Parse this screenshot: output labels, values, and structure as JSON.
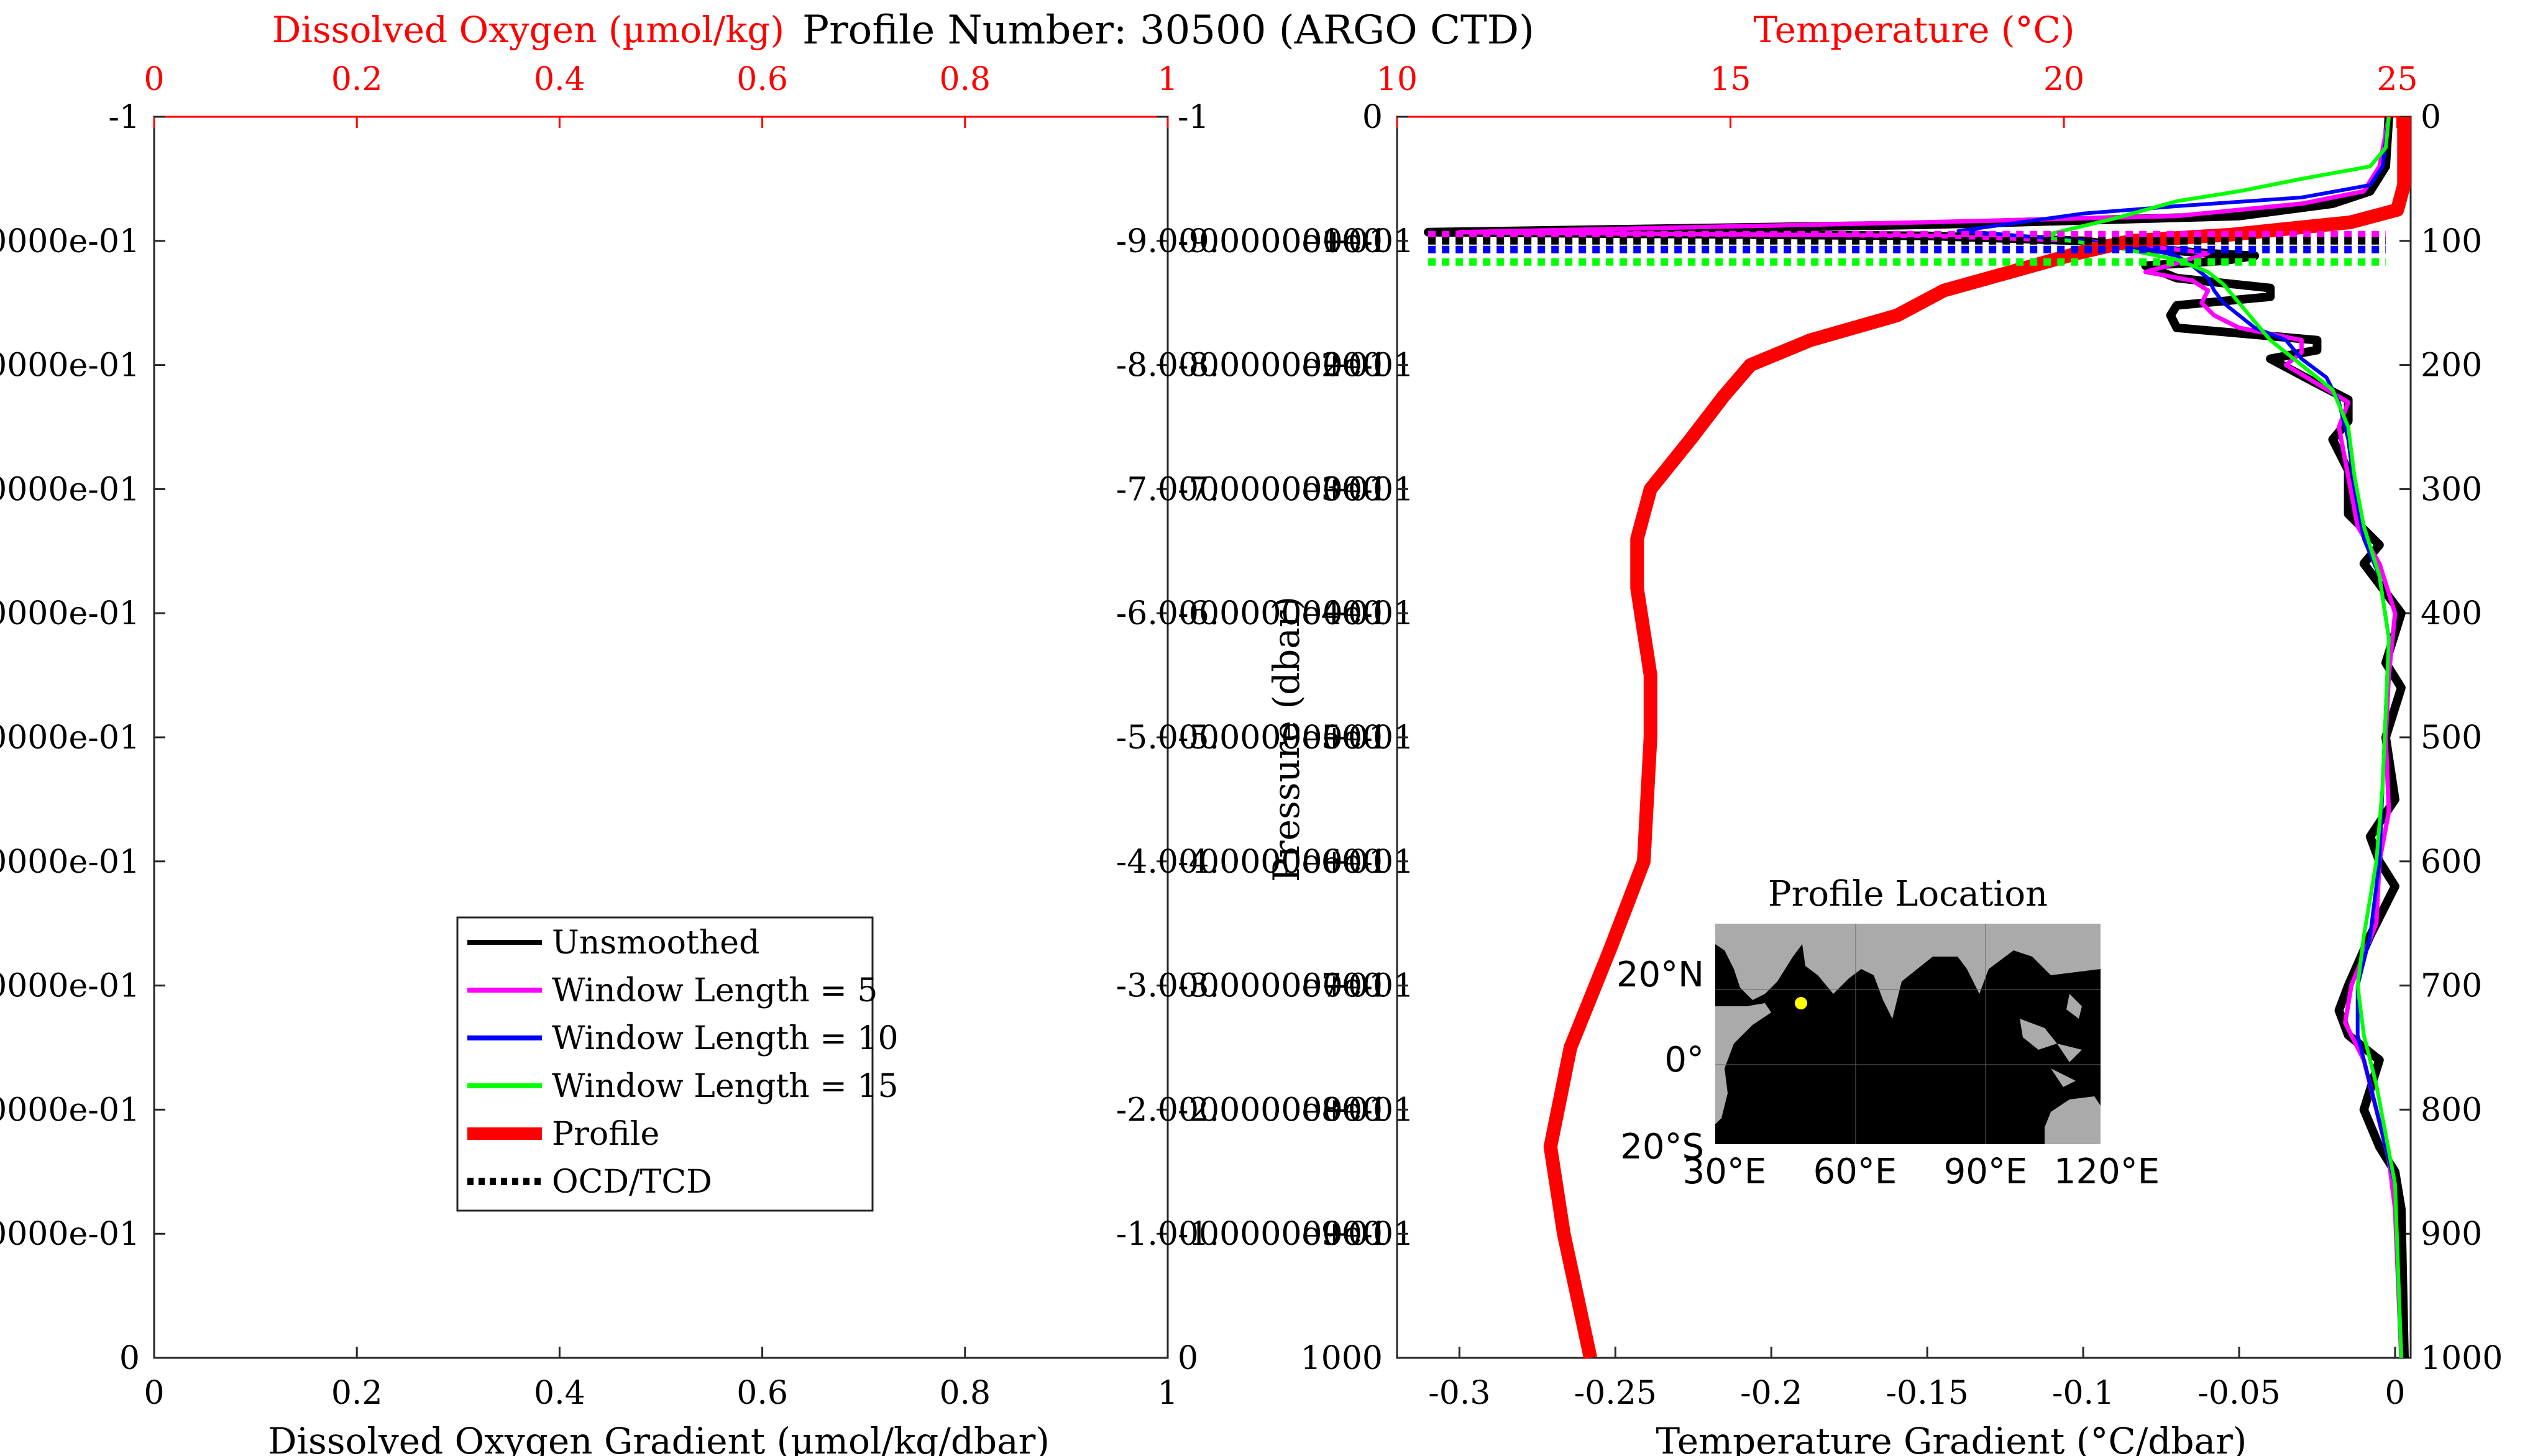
{
  "figure": {
    "title": "Profile Number: 30500 (ARGO CTD)"
  },
  "chart_data": [
    {
      "id": "oxygen-panel",
      "type": "line",
      "top_axis": {
        "label": "Dissolved Oxygen (µmol/kg)",
        "range": [
          0,
          1
        ],
        "ticks": [
          "0",
          "0.2",
          "0.4",
          "0.6",
          "0.8",
          "1"
        ],
        "color": "#ff0000"
      },
      "xlabel": "Dissolved Oxygen Gradient (µmol/kg/dbar)",
      "xlim": [
        0,
        1
      ],
      "x_ticks": [
        "0",
        "0.2",
        "0.4",
        "0.6",
        "0.8",
        "1"
      ],
      "left_y_ticks": [
        "-1",
        "0000e-01",
        "0000e-01",
        "0000e-01",
        "0000e-01",
        "0000e-01",
        "0000e-01",
        "0000e-01",
        "0000e-01",
        "0000e-01",
        "0"
      ],
      "right_y_ticks": [
        "-1",
        "-9.000000e-01",
        "-8.000000e-01",
        "-7.000000e-01",
        "-6.000000e-01",
        "-5.000000e-01",
        "-4.000000e-01",
        "-3.000000e-01",
        "-2.000000e-01",
        "-1.000000e-01",
        "0"
      ],
      "legend": {
        "placement": "lower-center",
        "entries": [
          {
            "label": "Unsmoothed",
            "color": "#000000",
            "style": "solid"
          },
          {
            "label": "Window Length = 5",
            "color": "#ff00ff",
            "style": "solid"
          },
          {
            "label": "Window Length = 10",
            "color": "#0000ff",
            "style": "solid"
          },
          {
            "label": "Window Length = 15",
            "color": "#00ff00",
            "style": "solid"
          },
          {
            "label": "Profile",
            "color": "#ff0000",
            "style": "thick"
          },
          {
            "label": "OCD/TCD",
            "color": "#000000",
            "style": "dotted"
          }
        ]
      }
    },
    {
      "id": "temperature-panel",
      "type": "line",
      "top_axis": {
        "label": "Temperature (°C)",
        "range": [
          10,
          25.2
        ],
        "ticks": [
          10,
          15,
          20,
          25
        ],
        "color": "#ff0000"
      },
      "xlabel": "Temperature Gradient (°C/dbar)",
      "xlim": [
        -0.32,
        0.005
      ],
      "x_ticks": [
        -0.3,
        -0.25,
        -0.2,
        -0.15,
        -0.1,
        -0.05,
        0
      ],
      "ylabel": "Pressure (dbar)",
      "ylim": [
        0,
        1000
      ],
      "y_reversed": true,
      "y_ticks": [
        0,
        100,
        200,
        300,
        400,
        500,
        600,
        700,
        800,
        900,
        1000
      ],
      "overlapping_left_labels": [
        "-1.0000000e+01",
        "-2.0000000e+01",
        "-3.0000000e+01",
        "-4.0000000e+01",
        "-5.0000000e+01",
        "-6.0000000e+01",
        "-7.0000000e+01",
        "-8.0000000e+01",
        "-9.0000000e+01"
      ],
      "series": [
        {
          "name": "Profile",
          "axis": "temperature",
          "color": "#ff0000",
          "points": [
            [
              25.1,
              0
            ],
            [
              25.1,
              20
            ],
            [
              25.1,
              55
            ],
            [
              25.0,
              75
            ],
            [
              24.3,
              85
            ],
            [
              22.5,
              95
            ],
            [
              21.0,
              100
            ],
            [
              20.2,
              110
            ],
            [
              19.2,
              125
            ],
            [
              18.2,
              140
            ],
            [
              17.5,
              160
            ],
            [
              16.2,
              180
            ],
            [
              15.3,
              200
            ],
            [
              14.9,
              225
            ],
            [
              14.4,
              260
            ],
            [
              13.8,
              300
            ],
            [
              13.6,
              340
            ],
            [
              13.6,
              380
            ],
            [
              13.8,
              450
            ],
            [
              13.8,
              500
            ],
            [
              13.7,
              600
            ],
            [
              13.2,
              670
            ],
            [
              12.6,
              750
            ],
            [
              12.3,
              830
            ],
            [
              12.5,
              900
            ],
            [
              12.9,
              1000
            ]
          ]
        },
        {
          "name": "Unsmoothed",
          "axis": "gradient",
          "color": "#000000",
          "points": [
            [
              -0.002,
              0
            ],
            [
              -0.003,
              40
            ],
            [
              -0.008,
              60
            ],
            [
              -0.02,
              70
            ],
            [
              -0.05,
              80
            ],
            [
              -0.15,
              87
            ],
            [
              -0.31,
              93
            ],
            [
              -0.15,
              96
            ],
            [
              -0.1,
              100
            ],
            [
              -0.08,
              106
            ],
            [
              -0.06,
              110
            ],
            [
              -0.045,
              112
            ],
            [
              -0.055,
              116
            ],
            [
              -0.08,
              120
            ],
            [
              -0.07,
              130
            ],
            [
              -0.04,
              138
            ],
            [
              -0.04,
              145
            ],
            [
              -0.07,
              152
            ],
            [
              -0.072,
              160
            ],
            [
              -0.07,
              170
            ],
            [
              -0.025,
              180
            ],
            [
              -0.025,
              188
            ],
            [
              -0.04,
              195
            ],
            [
              -0.025,
              215
            ],
            [
              -0.015,
              228
            ],
            [
              -0.015,
              245
            ],
            [
              -0.02,
              260
            ],
            [
              -0.015,
              285
            ],
            [
              -0.015,
              320
            ],
            [
              -0.005,
              345
            ],
            [
              -0.01,
              360
            ],
            [
              0.002,
              400
            ],
            [
              -0.003,
              440
            ],
            [
              0.002,
              460
            ],
            [
              -0.003,
              500
            ],
            [
              0.0,
              550
            ],
            [
              -0.008,
              580
            ],
            [
              -0.005,
              600
            ],
            [
              0.0,
              620
            ],
            [
              -0.008,
              660
            ],
            [
              -0.015,
              700
            ],
            [
              -0.018,
              720
            ],
            [
              -0.015,
              740
            ],
            [
              -0.005,
              760
            ],
            [
              -0.01,
              800
            ],
            [
              -0.005,
              830
            ],
            [
              0.0,
              850
            ],
            [
              0.002,
              880
            ],
            [
              0.003,
              1000
            ]
          ]
        },
        {
          "name": "Window Length = 5",
          "axis": "gradient",
          "color": "#ff00ff",
          "points": [
            [
              -0.002,
              0
            ],
            [
              -0.005,
              40
            ],
            [
              -0.01,
              60
            ],
            [
              -0.03,
              70
            ],
            [
              -0.07,
              80
            ],
            [
              -0.15,
              85
            ],
            [
              -0.3,
              93
            ],
            [
              -0.15,
              96
            ],
            [
              -0.1,
              100
            ],
            [
              -0.08,
              104
            ],
            [
              -0.06,
              110
            ],
            [
              -0.07,
              118
            ],
            [
              -0.08,
              125
            ],
            [
              -0.065,
              132
            ],
            [
              -0.06,
              140
            ],
            [
              -0.062,
              150
            ],
            [
              -0.058,
              160
            ],
            [
              -0.05,
              170
            ],
            [
              -0.03,
              180
            ],
            [
              -0.03,
              190
            ],
            [
              -0.035,
              200
            ],
            [
              -0.025,
              215
            ],
            [
              -0.015,
              230
            ],
            [
              -0.018,
              250
            ],
            [
              -0.015,
              290
            ],
            [
              -0.012,
              330
            ],
            [
              -0.005,
              360
            ],
            [
              0.0,
              400
            ],
            [
              -0.002,
              450
            ],
            [
              -0.003,
              500
            ],
            [
              -0.002,
              560
            ],
            [
              -0.005,
              600
            ],
            [
              -0.006,
              650
            ],
            [
              -0.014,
              700
            ],
            [
              -0.016,
              730
            ],
            [
              -0.01,
              760
            ],
            [
              -0.006,
              800
            ],
            [
              -0.002,
              840
            ],
            [
              0.0,
              880
            ],
            [
              0.002,
              1000
            ]
          ]
        },
        {
          "name": "Window Length = 10",
          "axis": "gradient",
          "color": "#0000ff",
          "points": [
            [
              -0.002,
              0
            ],
            [
              -0.004,
              40
            ],
            [
              -0.008,
              55
            ],
            [
              -0.03,
              65
            ],
            [
              -0.07,
              72
            ],
            [
              -0.1,
              78
            ],
            [
              -0.12,
              85
            ],
            [
              -0.14,
              92
            ],
            [
              -0.12,
              96
            ],
            [
              -0.1,
              100
            ],
            [
              -0.08,
              106
            ],
            [
              -0.07,
              112
            ],
            [
              -0.065,
              120
            ],
            [
              -0.06,
              130
            ],
            [
              -0.058,
              140
            ],
            [
              -0.055,
              150
            ],
            [
              -0.05,
              160
            ],
            [
              -0.045,
              170
            ],
            [
              -0.035,
              180
            ],
            [
              -0.03,
              195
            ],
            [
              -0.022,
              210
            ],
            [
              -0.018,
              230
            ],
            [
              -0.015,
              260
            ],
            [
              -0.013,
              300
            ],
            [
              -0.01,
              340
            ],
            [
              -0.005,
              370
            ],
            [
              -0.002,
              420
            ],
            [
              -0.003,
              480
            ],
            [
              -0.004,
              540
            ],
            [
              -0.005,
              600
            ],
            [
              -0.008,
              660
            ],
            [
              -0.012,
              700
            ],
            [
              -0.012,
              740
            ],
            [
              -0.008,
              780
            ],
            [
              -0.004,
              820
            ],
            [
              0.0,
              860
            ],
            [
              0.002,
              1000
            ]
          ]
        },
        {
          "name": "Window Length = 15",
          "axis": "gradient",
          "color": "#00ff00",
          "points": [
            [
              -0.002,
              0
            ],
            [
              -0.003,
              25
            ],
            [
              -0.008,
              40
            ],
            [
              -0.03,
              50
            ],
            [
              -0.05,
              60
            ],
            [
              -0.07,
              68
            ],
            [
              -0.08,
              75
            ],
            [
              -0.09,
              82
            ],
            [
              -0.1,
              88
            ],
            [
              -0.11,
              94
            ],
            [
              -0.11,
              98
            ],
            [
              -0.09,
              105
            ],
            [
              -0.07,
              115
            ],
            [
              -0.06,
              125
            ],
            [
              -0.055,
              135
            ],
            [
              -0.05,
              150
            ],
            [
              -0.045,
              165
            ],
            [
              -0.04,
              180
            ],
            [
              -0.03,
              200
            ],
            [
              -0.02,
              220
            ],
            [
              -0.015,
              250
            ],
            [
              -0.013,
              290
            ],
            [
              -0.01,
              330
            ],
            [
              -0.005,
              370
            ],
            [
              -0.002,
              420
            ],
            [
              -0.003,
              480
            ],
            [
              -0.004,
              540
            ],
            [
              -0.006,
              600
            ],
            [
              -0.01,
              660
            ],
            [
              -0.012,
              700
            ],
            [
              -0.01,
              740
            ],
            [
              -0.006,
              780
            ],
            [
              -0.003,
              820
            ],
            [
              0.0,
              860
            ],
            [
              0.002,
              1000
            ]
          ]
        }
      ],
      "ocd_tcd_lines": [
        {
          "pressure": 95,
          "color": "#ff00ff",
          "style": "dotted"
        },
        {
          "pressure": 100,
          "color": "#000000",
          "style": "dotted"
        },
        {
          "pressure": 107,
          "color": "#0000ff",
          "style": "dotted"
        },
        {
          "pressure": 117,
          "color": "#00ff00",
          "style": "dotted"
        }
      ],
      "ocd_tcd_x_range": [
        -0.31,
        -0.003
      ]
    },
    {
      "id": "location-inset",
      "type": "scatter",
      "title": "Profile Location",
      "x_ticks": [
        "30°E",
        "60°E",
        "90°E",
        "120°E"
      ],
      "y_ticks": [
        "20°N",
        "0°",
        "20°S"
      ],
      "point": {
        "lon": 46,
        "lat": 17,
        "color": "#ffff00"
      }
    }
  ]
}
